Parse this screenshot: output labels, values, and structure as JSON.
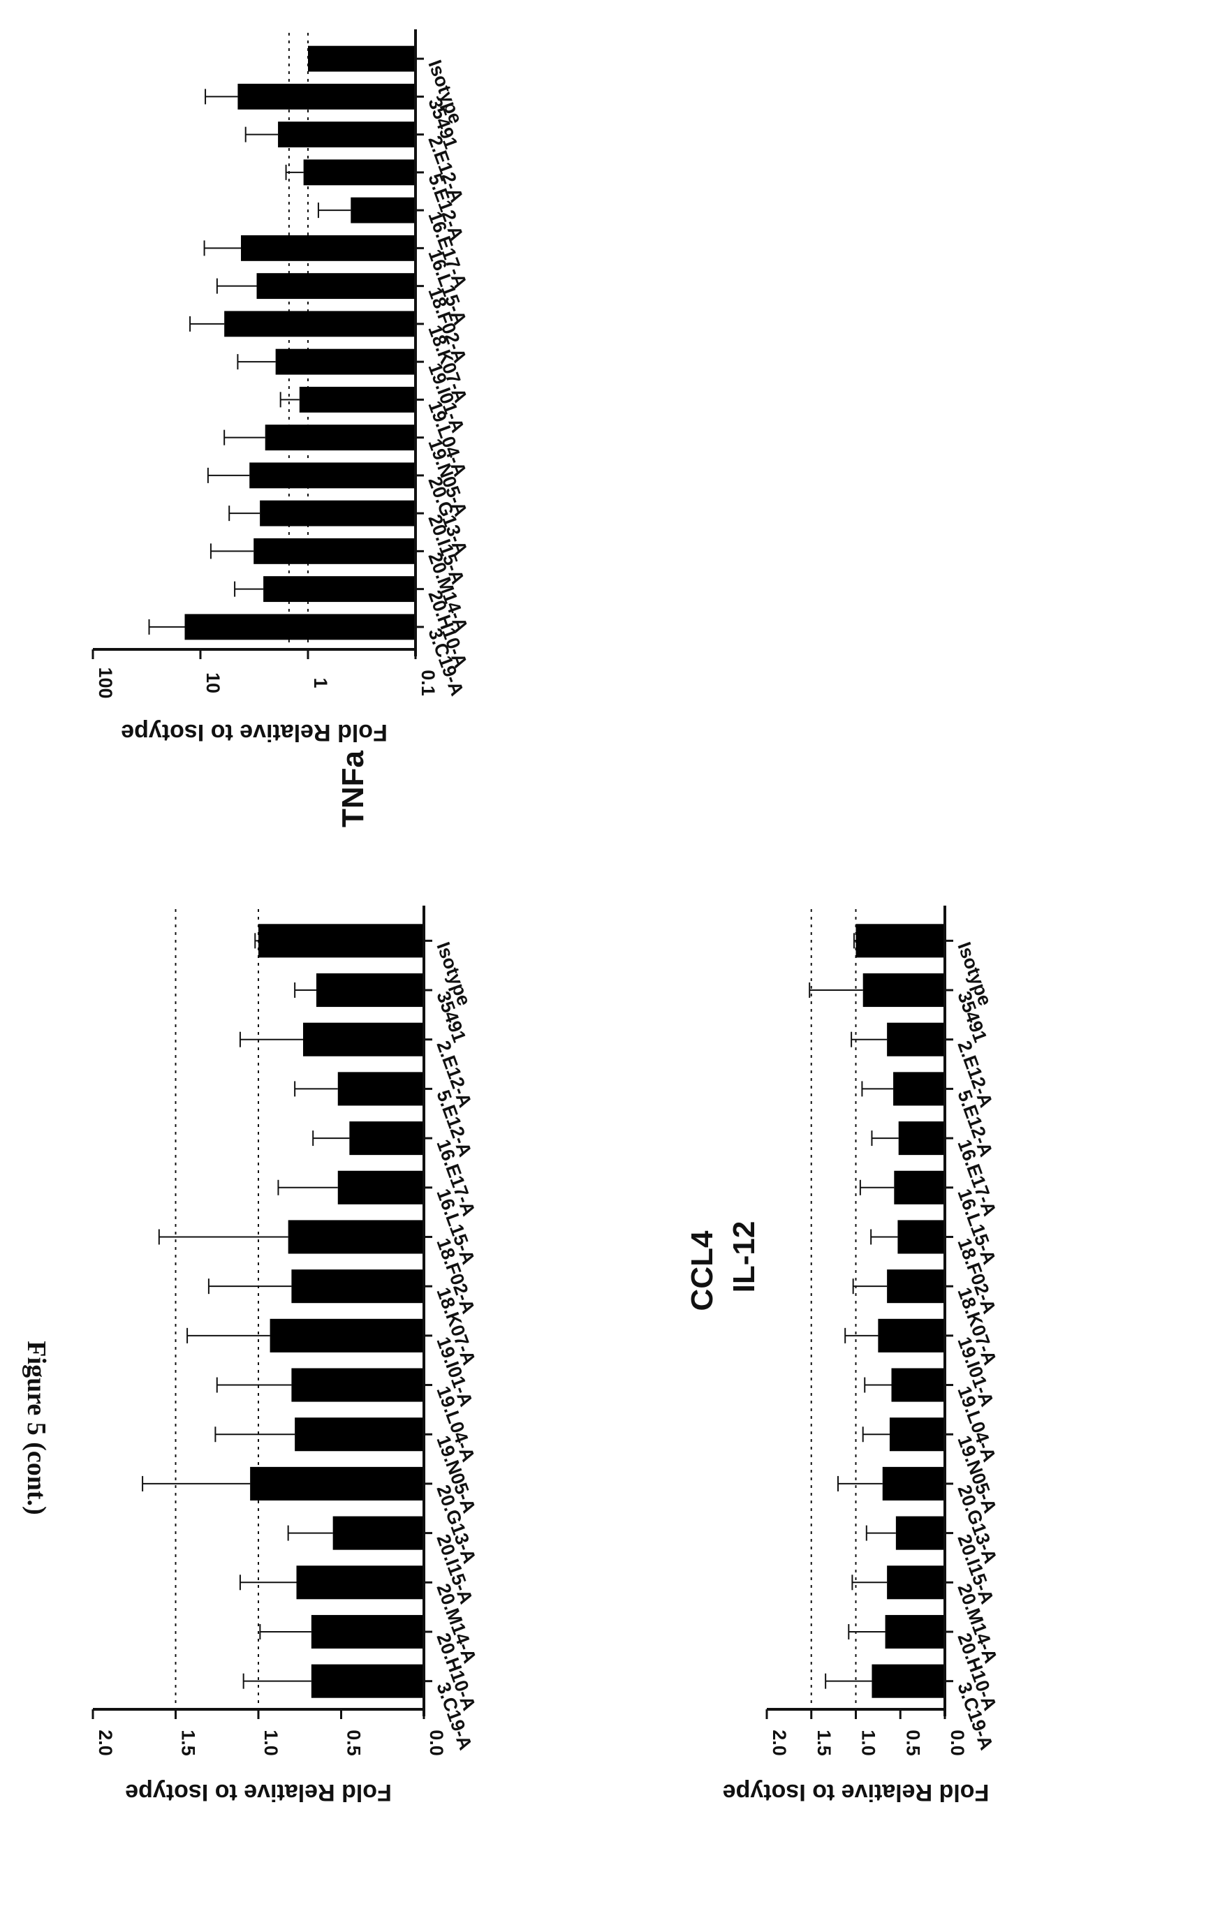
{
  "figure_label": "Figure 5 (cont.)",
  "chart_data": [
    {
      "id": "il12",
      "type": "bar",
      "title": "IL-12",
      "ylabel": "Fold Relative to Isotype",
      "yscale": "linear",
      "ylim": [
        0,
        2.0
      ],
      "yticks": [
        "0.0",
        "0.5",
        "1.0",
        "1.5",
        "2.0"
      ],
      "yticks_values": [
        0,
        0.5,
        1.0,
        1.5,
        2.0
      ],
      "reference_lines": [
        1.0,
        1.5
      ],
      "categories": [
        "Isotype",
        "35491",
        "2.E12-A",
        "5.E12-A",
        "16.E17-A",
        "16.L15-A",
        "18.F02-A",
        "18.K07-A",
        "19.I01-A",
        "19.L04-A",
        "19.N05-A",
        "20.G13-A",
        "20.I15-A",
        "20.M14-A",
        "20.H10-A",
        "3.C19-A"
      ],
      "values": [
        1.0,
        0.65,
        0.73,
        0.52,
        0.45,
        0.52,
        0.82,
        0.8,
        0.93,
        0.8,
        0.78,
        1.05,
        0.55,
        0.77,
        0.68,
        0.68
      ],
      "errors": [
        0.02,
        0.13,
        0.38,
        0.26,
        0.22,
        0.36,
        0.78,
        0.5,
        0.5,
        0.45,
        0.48,
        0.65,
        0.27,
        0.34,
        0.31,
        0.41
      ]
    },
    {
      "id": "ccl4",
      "type": "bar",
      "title": "CCL4",
      "ylabel": "Fold Relative to Isotype",
      "yscale": "linear",
      "ylim": [
        0,
        2.0
      ],
      "yticks": [
        "0.0",
        "0.5",
        "1.0",
        "1.5",
        "2.0"
      ],
      "yticks_values": [
        0,
        0.5,
        1.0,
        1.5,
        2.0
      ],
      "reference_lines": [
        1.0,
        1.5
      ],
      "categories": [
        "Isotype",
        "35491",
        "2.E12-A",
        "5.E12-A",
        "16.E17-A",
        "16.L15-A",
        "18.F02-A",
        "18.K07-A",
        "19.I01-A",
        "19.L04-A",
        "19.N05-A",
        "20.G13-A",
        "20.I15-A",
        "20.M14-A",
        "20.H10-A",
        "3.C19-A"
      ],
      "values": [
        1.0,
        0.92,
        0.65,
        0.58,
        0.52,
        0.57,
        0.53,
        0.65,
        0.75,
        0.6,
        0.62,
        0.7,
        0.55,
        0.65,
        0.67,
        0.82
      ],
      "errors": [
        0.02,
        0.6,
        0.4,
        0.35,
        0.3,
        0.38,
        0.3,
        0.38,
        0.37,
        0.3,
        0.3,
        0.5,
        0.33,
        0.39,
        0.41,
        0.52
      ]
    },
    {
      "id": "tnfa",
      "type": "bar",
      "title": "TNFa",
      "ylabel": "Fold Relative to Isotype",
      "yscale": "log",
      "ylim": [
        0.1,
        100
      ],
      "yticks": [
        "0.1",
        "1",
        "10",
        "100"
      ],
      "yticks_values": [
        0.1,
        1,
        10,
        100
      ],
      "reference_lines": [
        1,
        1.5
      ],
      "categories": [
        "Isotype",
        "35491",
        "2.E12-A",
        "5.E12-A",
        "16.E17-A",
        "16.L15-A",
        "18.F02-A",
        "18.K07-A",
        "19.I01-A",
        "19.L04-A",
        "19.N05-A",
        "20.G13-A",
        "20.I15-A",
        "20.M14-A",
        "20.H10-A",
        "3.C19-A"
      ],
      "values": [
        1.0,
        4.5,
        1.9,
        1.1,
        0.4,
        4.2,
        3.0,
        6.0,
        2.0,
        1.2,
        2.5,
        3.5,
        2.8,
        3.2,
        2.6,
        14.0
      ],
      "errors": [
        0.0,
        4.5,
        1.9,
        0.5,
        0.4,
        5.0,
        4.0,
        6.5,
        2.5,
        0.6,
        3.5,
        5.0,
        2.6,
        4.8,
        2.2,
        16.0
      ]
    }
  ]
}
